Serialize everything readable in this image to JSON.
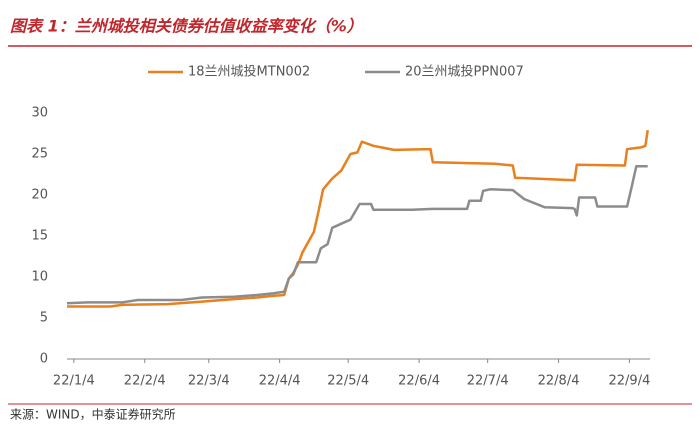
{
  "chart_data": {
    "type": "line",
    "title": "图表 1：兰州城投相关债券估值收益率变化（%）",
    "source": "来源：WIND，中泰证券研究所",
    "xlim": [
      "22/1/1",
      "22/9/13"
    ],
    "xticks": [
      "22/1/4",
      "22/2/4",
      "22/3/4",
      "22/4/4",
      "22/5/4",
      "22/6/4",
      "22/7/4",
      "22/8/4",
      "22/9/4"
    ],
    "ylim": [
      0,
      30
    ],
    "yticks": [
      0,
      5,
      10,
      15,
      20,
      25,
      30
    ],
    "grid": false,
    "legend": "top",
    "series": [
      {
        "name": "18兰州城投MTN002",
        "color": "#E8801E",
        "x": [
          "22/1/1",
          "22/1/20",
          "22/1/25",
          "22/2/14",
          "22/3/1",
          "22/3/15",
          "22/3/25",
          "22/4/1",
          "22/4/6",
          "22/4/8",
          "22/4/10",
          "22/4/12",
          "22/4/14",
          "22/4/19",
          "22/4/21",
          "22/4/23",
          "22/4/27",
          "22/5/1",
          "22/5/5",
          "22/5/8",
          "22/5/10",
          "22/5/15",
          "22/5/24",
          "22/6/9",
          "22/6/10",
          "22/7/7",
          "22/7/15",
          "22/7/16",
          "22/8/11",
          "22/8/12",
          "22/9/2",
          "22/9/3",
          "22/9/9",
          "22/9/11",
          "22/9/12"
        ],
        "values": [
          6.4,
          6.4,
          6.6,
          6.7,
          7.0,
          7.3,
          7.5,
          7.7,
          7.8,
          9.8,
          10.5,
          11.5,
          13,
          15.5,
          18,
          20.7,
          22,
          23,
          25,
          25.2,
          26.5,
          26,
          25.5,
          25.6,
          24,
          23.8,
          23.6,
          22.1,
          21.8,
          23.7,
          23.6,
          25.6,
          25.8,
          26,
          27.9
        ]
      },
      {
        "name": "20兰州城投PPN007",
        "color": "#8C8C8C",
        "x": [
          "22/1/1",
          "22/1/10",
          "22/1/25",
          "22/2/1",
          "22/2/20",
          "22/3/1",
          "22/3/15",
          "22/3/25",
          "22/4/1",
          "22/4/6",
          "22/4/8",
          "22/4/10",
          "22/4/12",
          "22/4/20",
          "22/4/22",
          "22/4/25",
          "22/4/27",
          "22/5/1",
          "22/5/5",
          "22/5/9",
          "22/5/14",
          "22/5/15",
          "22/6/1",
          "22/6/10",
          "22/6/25",
          "22/6/26",
          "22/7/1",
          "22/7/2",
          "22/7/5",
          "22/7/15",
          "22/7/20",
          "22/7/29",
          "22/8/10",
          "22/8/11",
          "22/8/12",
          "22/8/13",
          "22/8/20",
          "22/8/21",
          "22/9/3",
          "22/9/5",
          "22/9/7",
          "22/9/12"
        ],
        "values": [
          6.8,
          6.9,
          6.9,
          7.2,
          7.2,
          7.5,
          7.6,
          7.8,
          8.0,
          8.2,
          9.8,
          10.3,
          11.8,
          11.8,
          13.5,
          14,
          16,
          16.5,
          17,
          18.9,
          18.9,
          18.2,
          18.2,
          18.3,
          18.3,
          19.3,
          19.3,
          20.5,
          20.7,
          20.6,
          19.5,
          18.5,
          18.4,
          18.3,
          17.5,
          19.7,
          19.7,
          18.6,
          18.6,
          21,
          23.5,
          23.5
        ]
      }
    ]
  }
}
